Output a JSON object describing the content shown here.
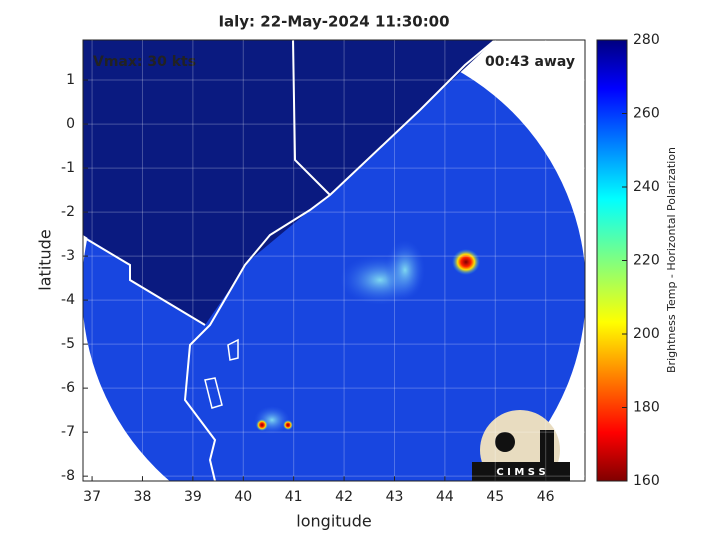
{
  "chart_data": {
    "type": "map",
    "title": "Ialy: 22-May-2024 11:30:00",
    "xlabel": "longitude",
    "ylabel": "latitude",
    "xlim": [
      36.82,
      46.78
    ],
    "ylim": [
      -8.11,
      1.91
    ],
    "xticks": [
      37,
      38,
      39,
      40,
      41,
      42,
      43,
      44,
      45,
      46
    ],
    "yticks": [
      1,
      0,
      -1,
      -2,
      -3,
      -4,
      -5,
      -6,
      -7,
      -8
    ],
    "grid": true,
    "annotations": [
      "Vmax: 30 kts",
      "00:43 away"
    ],
    "colorbar": {
      "label": "Brightness Temp - Horizontal Polarization",
      "lim": [
        160,
        280
      ],
      "ticks": [
        280,
        260,
        240,
        220,
        200,
        180,
        160
      ],
      "colormap": "jet"
    },
    "logo": "C I M S S"
  }
}
